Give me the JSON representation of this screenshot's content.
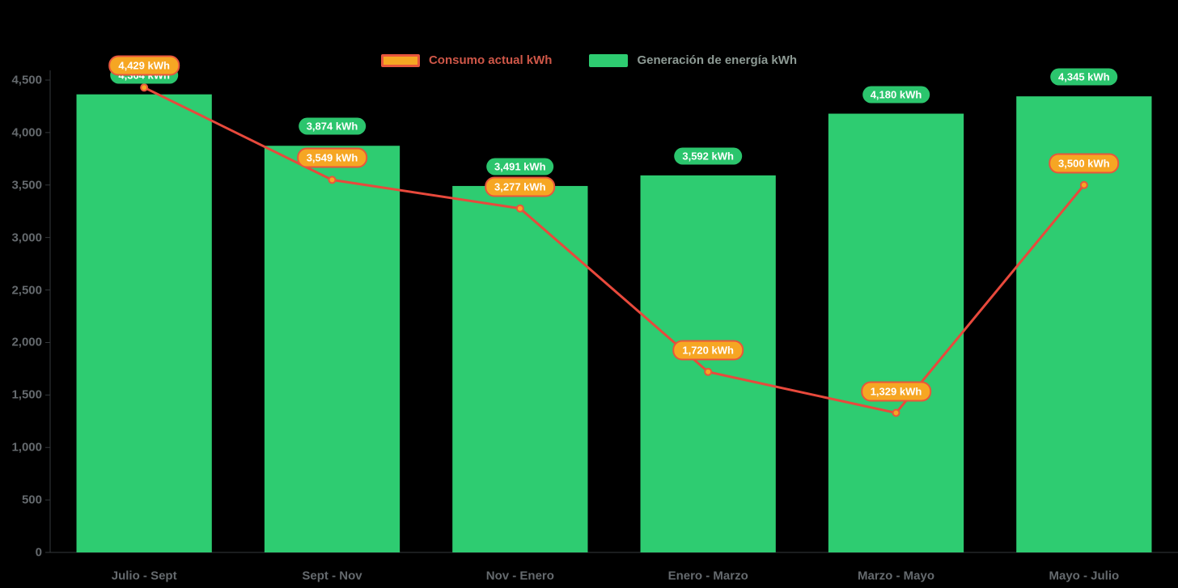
{
  "legend": {
    "items": [
      {
        "label": "Consumo actual kWh",
        "swatch_fill": "#f6a623",
        "swatch_border": "#e8563c",
        "text_color": "#cf5748"
      },
      {
        "label": "Generación de energía kWh",
        "swatch_fill": "#2ecc71",
        "swatch_border": "#2ecc71",
        "text_color": "#8d9a94"
      }
    ]
  },
  "chart_data": {
    "type": "bar",
    "title": "",
    "xlabel": "",
    "ylabel": "",
    "categories": [
      "Julio - Sept",
      "Sept - Nov",
      "Nov - Enero",
      "Enero - Marzo",
      "Marzo - Mayo",
      "Mayo - Julio"
    ],
    "series": [
      {
        "name": "Generación de energía kWh",
        "type": "bar",
        "color": "#2ecc71",
        "values": [
          4364,
          3874,
          3491,
          3592,
          4180,
          4345
        ],
        "point_labels": [
          "4,364 kWh",
          "3,874 kWh",
          "3,491 kWh",
          "3,592 kWh",
          "4,180 kWh",
          "4,345 kWh"
        ],
        "label_fill": "#2bc56d"
      },
      {
        "name": "Consumo actual kWh",
        "type": "line",
        "color": "#e8493c",
        "point_fill": "#f6a623",
        "point_stroke": "#e8563c",
        "values": [
          4429,
          3549,
          3277,
          1720,
          1329,
          3500
        ],
        "point_labels": [
          "4,429 kWh",
          "3,549 kWh",
          "3,277 kWh",
          "1,720 kWh",
          "1,329 kWh",
          "3,500 kWh"
        ],
        "label_fill": "#f6a623",
        "label_border": "#e8563c"
      }
    ],
    "ylim": [
      0,
      4500
    ],
    "y_ticks": [
      {
        "v": 0,
        "label": "0"
      },
      {
        "v": 500,
        "label": "500"
      },
      {
        "v": 1000,
        "label": "1,000"
      },
      {
        "v": 1500,
        "label": "1,500"
      },
      {
        "v": 2000,
        "label": "2,000"
      },
      {
        "v": 2500,
        "label": "2,500"
      },
      {
        "v": 3000,
        "label": "3,000"
      },
      {
        "v": 3500,
        "label": "3,500"
      },
      {
        "v": 4000,
        "label": "4,000"
      },
      {
        "v": 4500,
        "label": "4,500"
      }
    ],
    "grid": false,
    "legend_position": "top",
    "axis_text_color": "#656a6e"
  }
}
